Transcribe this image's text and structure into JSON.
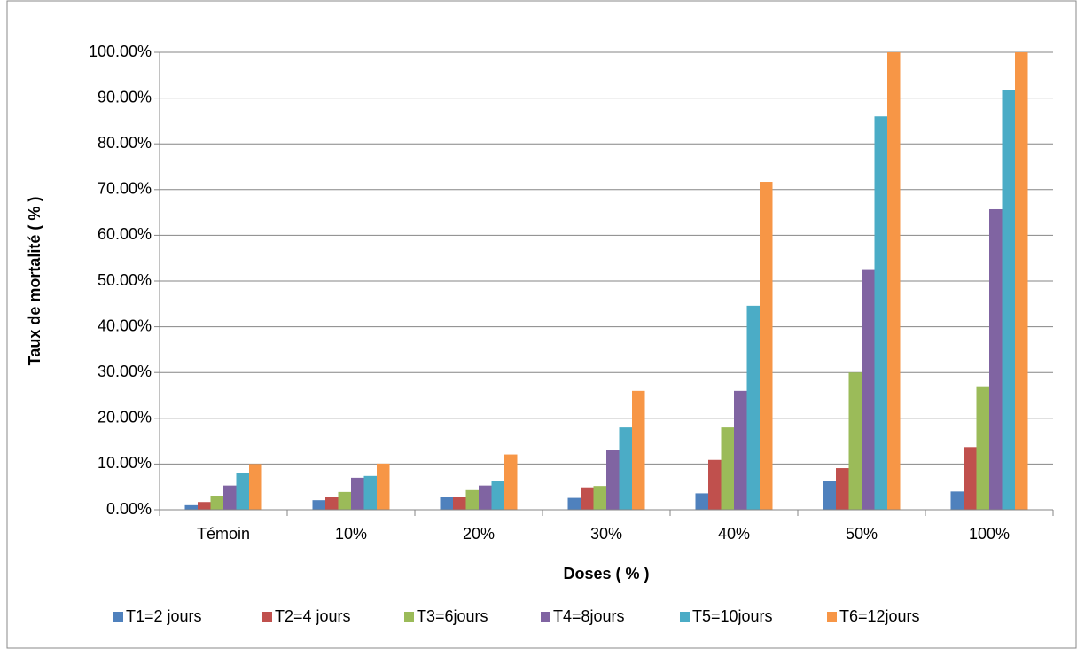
{
  "chart_data": {
    "type": "bar",
    "xlabel": "Doses ( % )",
    "ylabel": "Taux de mortalité ( % )",
    "categories": [
      "Témoin",
      "10%",
      "20%",
      "30%",
      "40%",
      "50%",
      "100%"
    ],
    "series": [
      {
        "name": "T1=2 jours",
        "color": "#4f81bd",
        "values": [
          1,
          2.1,
          2.8,
          2.6,
          3.6,
          6.3,
          4
        ]
      },
      {
        "name": "T2=4 jours",
        "color": "#c0504d",
        "values": [
          1.7,
          2.8,
          2.8,
          4.9,
          10.9,
          9.1,
          13.7
        ]
      },
      {
        "name": "T3=6jours",
        "color": "#9bbb59",
        "values": [
          3.1,
          3.9,
          4.3,
          5.2,
          18,
          30,
          27
        ]
      },
      {
        "name": "T4=8jours",
        "color": "#8064a2",
        "values": [
          5.3,
          7,
          5.3,
          13,
          26,
          52.6,
          65.7
        ]
      },
      {
        "name": "T5=10jours",
        "color": "#4bacc6",
        "values": [
          8.1,
          7.4,
          6.2,
          18,
          44.6,
          86,
          91.8
        ]
      },
      {
        "name": "T6=12jours",
        "color": "#f79646",
        "values": [
          10,
          10.1,
          12.1,
          26,
          71.7,
          100,
          100
        ]
      }
    ],
    "ylim": [
      0,
      100
    ],
    "yticks": [
      {
        "value": 0,
        "label": "0.00%"
      },
      {
        "value": 10,
        "label": "10.00%"
      },
      {
        "value": 20,
        "label": "20.00%"
      },
      {
        "value": 30,
        "label": "30.00%"
      },
      {
        "value": 40,
        "label": "40.00%"
      },
      {
        "value": 50,
        "label": "50.00%"
      },
      {
        "value": 60,
        "label": "60.00%"
      },
      {
        "value": 70,
        "label": "70.00%"
      },
      {
        "value": 80,
        "label": "80.00%"
      },
      {
        "value": 90,
        "label": "90.00%"
      },
      {
        "value": 100,
        "label": "100.00%"
      }
    ],
    "grid": true,
    "legend": "bottom"
  }
}
